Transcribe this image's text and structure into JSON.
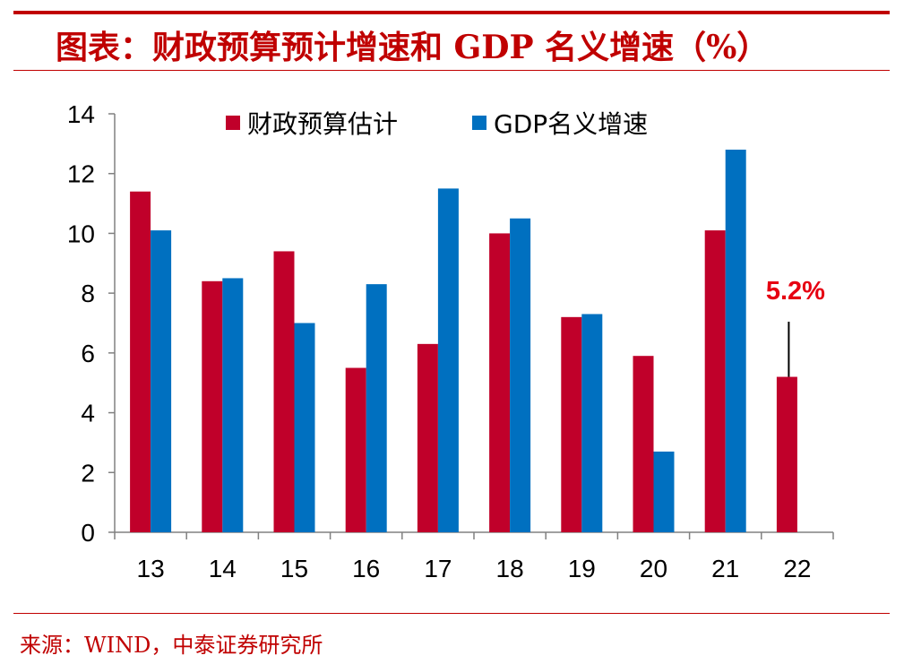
{
  "header": {
    "title": "图表：财政预算预计增速和 GDP 名义增速（%）"
  },
  "footer": {
    "source": "来源：WIND，中泰证券研究所"
  },
  "colors": {
    "accent": "#c00000",
    "fiscal": "#c0002a",
    "gdp": "#0070c0",
    "annotation": "#e60012"
  },
  "chart_data": {
    "type": "bar",
    "title": "",
    "xlabel": "",
    "ylabel": "",
    "categories": [
      "13",
      "14",
      "15",
      "16",
      "17",
      "18",
      "19",
      "20",
      "21",
      "22"
    ],
    "series": [
      {
        "name": "财政预算估计",
        "values": [
          11.4,
          8.4,
          9.4,
          5.5,
          6.3,
          10.0,
          7.2,
          5.9,
          10.1,
          5.2
        ]
      },
      {
        "name": "GDP名义增速",
        "values": [
          10.1,
          8.5,
          7.0,
          8.3,
          11.5,
          10.5,
          7.3,
          2.7,
          12.8,
          null
        ]
      }
    ],
    "ylim": [
      0,
      14
    ],
    "yticks": [
      "0",
      "2",
      "4",
      "6",
      "8",
      "10",
      "12",
      "14"
    ],
    "grid": false,
    "legend_position": "top",
    "annotations": [
      {
        "text": "5.2%",
        "category": "22"
      }
    ]
  }
}
